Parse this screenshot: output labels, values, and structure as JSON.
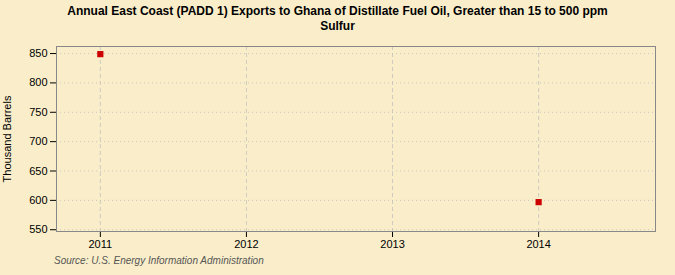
{
  "chart_data": {
    "type": "scatter",
    "title": "Annual East Coast (PADD 1) Exports to Ghana of Distillate Fuel Oil, Greater than 15 to 500 ppm\nSulfur",
    "ylabel": "Thousand Barrels",
    "source": "Source: U.S. Energy Information Administration",
    "x": [
      2011,
      2014
    ],
    "values": [
      849,
      597
    ],
    "color": "#cc0000",
    "marker": "square",
    "xlim": [
      2010.7,
      2014.8
    ],
    "ylim": [
      547,
      862
    ],
    "xticks": [
      2011,
      2012,
      2013,
      2014
    ],
    "yticks": [
      550,
      600,
      650,
      700,
      750,
      800,
      850
    ],
    "grid": true
  }
}
